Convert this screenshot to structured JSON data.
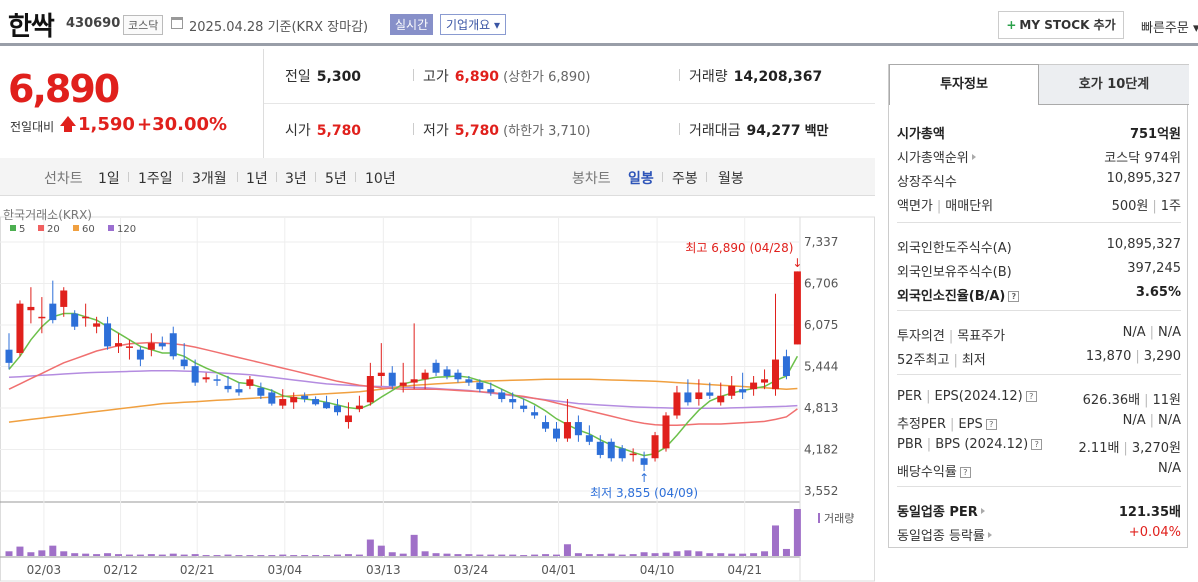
{
  "header": {
    "name": "한싹",
    "code": "430690",
    "market": "코스닥",
    "date": "2025.04.28  기준(KRX 장마감)",
    "realtime": "실시간",
    "overview": "기업개요 ▾",
    "mystock_plus": "+",
    "mystock": "MY STOCK 추가",
    "quick_order": "빠른주문 ▾"
  },
  "price": {
    "current": "6,890",
    "change_label": "전일대비",
    "change": "1,590",
    "change_pct": "+30.00%",
    "prev_close_label": "전일",
    "prev_close": "5,300",
    "high_label": "고가",
    "high": "6,890",
    "upper_limit": "(상한가 6,890)",
    "volume_label": "거래량",
    "volume": "14,208,367",
    "open_label": "시가",
    "open": "5,780",
    "low_label": "저가",
    "low": "5,780",
    "lower_limit": "(하한가 3,710)",
    "trade_value_label": "거래대금",
    "trade_value": "94,277",
    "trade_value_unit": "백만"
  },
  "period_bar": {
    "line_chart": "선차트",
    "periods": [
      "1일",
      "1주일",
      "3개월",
      "1년",
      "3년",
      "5년",
      "10년"
    ],
    "candle_chart": "봉차트",
    "candle_periods": [
      "일봉",
      "주봉",
      "월봉"
    ],
    "active_candle": "일봉"
  },
  "chart_data": {
    "type": "candlestick",
    "source": "한국거래소(KRX)",
    "ma_legend": [
      {
        "name": "5",
        "color": "#4caf50"
      },
      {
        "name": "20",
        "color": "#f06060"
      },
      {
        "name": "60",
        "color": "#f0a040"
      },
      {
        "name": "120",
        "color": "#9b6fd0"
      }
    ],
    "y_ticks": [
      "7,337",
      "6,706",
      "6,075",
      "5,444",
      "4,813",
      "4,182",
      "3,552"
    ],
    "ylim": [
      3552,
      7337
    ],
    "x_ticks": [
      "02/03",
      "02/12",
      "02/21",
      "03/04",
      "03/13",
      "03/24",
      "04/01",
      "04/10",
      "04/21"
    ],
    "max_label": "최고 6,890 (04/28)",
    "min_label": "최저 3,855 (04/09)",
    "volume_label": "거래량",
    "up_color": "#e0201c",
    "down_color": "#2d6fd8",
    "candles": [
      {
        "o": 5700,
        "h": 5950,
        "l": 5400,
        "c": 5500
      },
      {
        "o": 5650,
        "h": 6450,
        "l": 5600,
        "c": 6400
      },
      {
        "o": 6300,
        "h": 6650,
        "l": 6100,
        "c": 6350
      },
      {
        "o": 6200,
        "h": 6500,
        "l": 5950,
        "c": 6200
      },
      {
        "o": 6400,
        "h": 6750,
        "l": 6100,
        "c": 6150
      },
      {
        "o": 6350,
        "h": 6650,
        "l": 6200,
        "c": 6600
      },
      {
        "o": 6250,
        "h": 6300,
        "l": 6000,
        "c": 6050
      },
      {
        "o": 6200,
        "h": 6400,
        "l": 6050,
        "c": 6200
      },
      {
        "o": 6050,
        "h": 6200,
        "l": 5950,
        "c": 6100
      },
      {
        "o": 6100,
        "h": 6200,
        "l": 5700,
        "c": 5750
      },
      {
        "o": 5750,
        "h": 5950,
        "l": 5650,
        "c": 5800
      },
      {
        "o": 5750,
        "h": 5850,
        "l": 5550,
        "c": 5750
      },
      {
        "o": 5700,
        "h": 5750,
        "l": 5450,
        "c": 5550
      },
      {
        "o": 5700,
        "h": 5950,
        "l": 5600,
        "c": 5800
      },
      {
        "o": 5800,
        "h": 5900,
        "l": 5700,
        "c": 5750
      },
      {
        "o": 5950,
        "h": 6050,
        "l": 5550,
        "c": 5600
      },
      {
        "o": 5550,
        "h": 5800,
        "l": 5400,
        "c": 5450
      },
      {
        "o": 5450,
        "h": 5550,
        "l": 5150,
        "c": 5200
      },
      {
        "o": 5250,
        "h": 5350,
        "l": 5200,
        "c": 5280
      },
      {
        "o": 5250,
        "h": 5320,
        "l": 5150,
        "c": 5230
      },
      {
        "o": 5150,
        "h": 5300,
        "l": 5050,
        "c": 5100
      },
      {
        "o": 5100,
        "h": 5200,
        "l": 5000,
        "c": 5050
      },
      {
        "o": 5150,
        "h": 5300,
        "l": 5100,
        "c": 5250
      },
      {
        "o": 5120,
        "h": 5200,
        "l": 4950,
        "c": 5000
      },
      {
        "o": 5050,
        "h": 5100,
        "l": 4850,
        "c": 4880
      },
      {
        "o": 4850,
        "h": 5100,
        "l": 4800,
        "c": 4950
      },
      {
        "o": 4900,
        "h": 5050,
        "l": 4800,
        "c": 4980
      },
      {
        "o": 5000,
        "h": 5050,
        "l": 4900,
        "c": 4950
      },
      {
        "o": 4950,
        "h": 4990,
        "l": 4850,
        "c": 4870
      },
      {
        "o": 4900,
        "h": 5000,
        "l": 4800,
        "c": 4810
      },
      {
        "o": 4850,
        "h": 4950,
        "l": 4700,
        "c": 4750
      },
      {
        "o": 4600,
        "h": 4900,
        "l": 4500,
        "c": 4700
      },
      {
        "o": 4800,
        "h": 5000,
        "l": 4750,
        "c": 4850
      },
      {
        "o": 4900,
        "h": 5500,
        "l": 4850,
        "c": 5300
      },
      {
        "o": 5300,
        "h": 5800,
        "l": 5150,
        "c": 5350
      },
      {
        "o": 5350,
        "h": 5450,
        "l": 5100,
        "c": 5150
      },
      {
        "o": 5150,
        "h": 5500,
        "l": 5050,
        "c": 5200
      },
      {
        "o": 5200,
        "h": 6100,
        "l": 5100,
        "c": 5250
      },
      {
        "o": 5250,
        "h": 5400,
        "l": 5100,
        "c": 5350
      },
      {
        "o": 5500,
        "h": 5550,
        "l": 5300,
        "c": 5350
      },
      {
        "o": 5400,
        "h": 5450,
        "l": 5250,
        "c": 5300
      },
      {
        "o": 5350,
        "h": 5400,
        "l": 5200,
        "c": 5250
      },
      {
        "o": 5250,
        "h": 5300,
        "l": 5150,
        "c": 5200
      },
      {
        "o": 5200,
        "h": 5250,
        "l": 5050,
        "c": 5100
      },
      {
        "o": 5100,
        "h": 5200,
        "l": 5000,
        "c": 5050
      },
      {
        "o": 5050,
        "h": 5100,
        "l": 4900,
        "c": 4950
      },
      {
        "o": 4950,
        "h": 5050,
        "l": 4800,
        "c": 4900
      },
      {
        "o": 4850,
        "h": 4950,
        "l": 4750,
        "c": 4800
      },
      {
        "o": 4750,
        "h": 4850,
        "l": 4650,
        "c": 4700
      },
      {
        "o": 4600,
        "h": 4700,
        "l": 4450,
        "c": 4500
      },
      {
        "o": 4500,
        "h": 4600,
        "l": 4300,
        "c": 4350
      },
      {
        "o": 4350,
        "h": 4950,
        "l": 4300,
        "c": 4600
      },
      {
        "o": 4600,
        "h": 4700,
        "l": 4300,
        "c": 4400
      },
      {
        "o": 4400,
        "h": 4550,
        "l": 4250,
        "c": 4300
      },
      {
        "o": 4300,
        "h": 4400,
        "l": 4050,
        "c": 4100
      },
      {
        "o": 4300,
        "h": 4350,
        "l": 4000,
        "c": 4050
      },
      {
        "o": 4200,
        "h": 4250,
        "l": 4000,
        "c": 4050
      },
      {
        "o": 4100,
        "h": 4200,
        "l": 4000,
        "c": 4120
      },
      {
        "o": 4050,
        "h": 4150,
        "l": 3855,
        "c": 3950
      },
      {
        "o": 4050,
        "h": 4450,
        "l": 4000,
        "c": 4400
      },
      {
        "o": 4200,
        "h": 4750,
        "l": 4150,
        "c": 4700
      },
      {
        "o": 4700,
        "h": 5150,
        "l": 4650,
        "c": 5050
      },
      {
        "o": 5050,
        "h": 5250,
        "l": 4850,
        "c": 4900
      },
      {
        "o": 4950,
        "h": 5250,
        "l": 4850,
        "c": 5050
      },
      {
        "o": 5050,
        "h": 5200,
        "l": 4950,
        "c": 5000
      },
      {
        "o": 4900,
        "h": 5200,
        "l": 4850,
        "c": 5000
      },
      {
        "o": 5000,
        "h": 5300,
        "l": 4950,
        "c": 5150
      },
      {
        "o": 5100,
        "h": 5350,
        "l": 4950,
        "c": 5050
      },
      {
        "o": 5100,
        "h": 5300,
        "l": 5000,
        "c": 5200
      },
      {
        "o": 5200,
        "h": 5400,
        "l": 5100,
        "c": 5250
      },
      {
        "o": 5100,
        "h": 6550,
        "l": 5000,
        "c": 5550
      },
      {
        "o": 5600,
        "h": 5700,
        "l": 5250,
        "c": 5300
      },
      {
        "o": 5780,
        "h": 6890,
        "l": 5780,
        "c": 6890
      }
    ],
    "ma5": [
      5400,
      5600,
      5850,
      6050,
      6200,
      6250,
      6250,
      6200,
      6150,
      6050,
      5950,
      5850,
      5750,
      5700,
      5650,
      5650,
      5600,
      5500,
      5420,
      5350,
      5280,
      5200,
      5180,
      5130,
      5080,
      5000,
      4970,
      4950,
      4930,
      4900,
      4860,
      4820,
      4800,
      4870,
      4980,
      5080,
      5180,
      5220,
      5250,
      5280,
      5290,
      5300,
      5280,
      5230,
      5180,
      5100,
      5020,
      4950,
      4870,
      4770,
      4650,
      4560,
      4480,
      4420,
      4330,
      4250,
      4200,
      4140,
      4090,
      4120,
      4220,
      4400,
      4600,
      4780,
      4920,
      4990,
      5040,
      5080,
      5110,
      5140,
      5230,
      5300,
      5600
    ],
    "ma20": [
      5100,
      5180,
      5260,
      5340,
      5420,
      5500,
      5560,
      5620,
      5680,
      5720,
      5760,
      5790,
      5800,
      5810,
      5800,
      5790,
      5770,
      5740,
      5700,
      5660,
      5620,
      5580,
      5540,
      5500,
      5460,
      5420,
      5380,
      5340,
      5300,
      5260,
      5220,
      5190,
      5160,
      5140,
      5120,
      5110,
      5100,
      5100,
      5100,
      5100,
      5090,
      5080,
      5070,
      5060,
      5050,
      5030,
      5010,
      4990,
      4960,
      4930,
      4890,
      4850,
      4810,
      4770,
      4730,
      4690,
      4650,
      4610,
      4580,
      4560,
      4550,
      4550,
      4560,
      4570,
      4570,
      4570,
      4580,
      4590,
      4600,
      4610,
      4640,
      4680,
      4800
    ],
    "ma60": [
      4600,
      4620,
      4640,
      4660,
      4680,
      4700,
      4720,
      4740,
      4760,
      4780,
      4800,
      4820,
      4840,
      4860,
      4880,
      4890,
      4900,
      4910,
      4920,
      4930,
      4940,
      4950,
      4960,
      4970,
      4980,
      4990,
      5000,
      5010,
      5020,
      5030,
      5040,
      5050,
      5060,
      5080,
      5100,
      5120,
      5140,
      5160,
      5170,
      5180,
      5190,
      5200,
      5210,
      5220,
      5225,
      5230,
      5235,
      5240,
      5245,
      5250,
      5250,
      5250,
      5250,
      5250,
      5245,
      5240,
      5235,
      5230,
      5225,
      5220,
      5210,
      5200,
      5190,
      5180,
      5170,
      5160,
      5150,
      5140,
      5130,
      5120,
      5110,
      5100,
      5110
    ],
    "ma120": [
      5280,
      5290,
      5300,
      5310,
      5320,
      5330,
      5340,
      5350,
      5355,
      5360,
      5365,
      5370,
      5375,
      5380,
      5380,
      5380,
      5375,
      5370,
      5360,
      5350,
      5340,
      5330,
      5320,
      5300,
      5280,
      5260,
      5240,
      5220,
      5200,
      5180,
      5170,
      5160,
      5150,
      5145,
      5140,
      5135,
      5130,
      5125,
      5120,
      5110,
      5100,
      5090,
      5080,
      5060,
      5040,
      5020,
      5000,
      4980,
      4960,
      4940,
      4920,
      4900,
      4880,
      4870,
      4860,
      4850,
      4840,
      4830,
      4825,
      4820,
      4815,
      4810,
      4810,
      4810,
      4810,
      4810,
      4815,
      4820,
      4825,
      4830,
      4835,
      4840,
      4850
    ],
    "volumes": [
      0.1,
      0.2,
      0.08,
      0.12,
      0.22,
      0.1,
      0.06,
      0.05,
      0.04,
      0.06,
      0.04,
      0.03,
      0.03,
      0.04,
      0.03,
      0.05,
      0.03,
      0.04,
      0.02,
      0.02,
      0.03,
      0.02,
      0.02,
      0.02,
      0.02,
      0.03,
      0.02,
      0.02,
      0.02,
      0.02,
      0.03,
      0.04,
      0.03,
      0.35,
      0.22,
      0.08,
      0.05,
      0.45,
      0.1,
      0.06,
      0.05,
      0.04,
      0.04,
      0.03,
      0.03,
      0.03,
      0.03,
      0.02,
      0.03,
      0.04,
      0.03,
      0.25,
      0.06,
      0.04,
      0.04,
      0.05,
      0.03,
      0.04,
      0.08,
      0.06,
      0.07,
      0.1,
      0.12,
      0.1,
      0.06,
      0.06,
      0.05,
      0.05,
      0.06,
      0.1,
      0.65,
      0.15,
      1.0
    ]
  },
  "right_panel": {
    "tab_invest": "투자정보",
    "tab_order_book": "호가 10단계",
    "rows": [
      {
        "label": "시가총액",
        "value": "751억원",
        "bold": true
      },
      {
        "label": "시가총액순위",
        "value": "코스닥 974위",
        "arrow": true
      },
      {
        "label": "상장주식수",
        "value": "10,895,327"
      },
      {
        "label": "액면가",
        "label2": "매매단위",
        "value": "500원",
        "value2": "1주"
      },
      {
        "label": "외국인한도주식수(A)",
        "value": "10,895,327"
      },
      {
        "label": "외국인보유주식수(B)",
        "value": "397,245"
      },
      {
        "label": "외국인소진율(B/A)",
        "value": "3.65%",
        "bold": true,
        "help": true
      },
      {
        "label": "투자의견",
        "label2": "목표주가",
        "value": "N/A",
        "value2": "N/A"
      },
      {
        "label": "52주최고",
        "label2": "최저",
        "value": "13,870",
        "value2": "3,290"
      },
      {
        "label": "PER",
        "label2": "EPS(2024.12)",
        "value": "626.36배",
        "value2": "11원",
        "help": true
      },
      {
        "label": "추정PER",
        "label2": "EPS",
        "value": "N/A",
        "value2": "N/A",
        "help": true
      },
      {
        "label": "PBR",
        "label2": "BPS (2024.12)",
        "value": "2.11배",
        "value2": "3,270원",
        "help": true
      },
      {
        "label": "배당수익률",
        "value": "N/A",
        "help": true
      },
      {
        "label": "동일업종 PER",
        "value": "121.35배",
        "bold": true,
        "arrow": true
      },
      {
        "label": "동일업종 등락률",
        "value": "+0.04%",
        "arrow": true,
        "red": true
      }
    ]
  }
}
